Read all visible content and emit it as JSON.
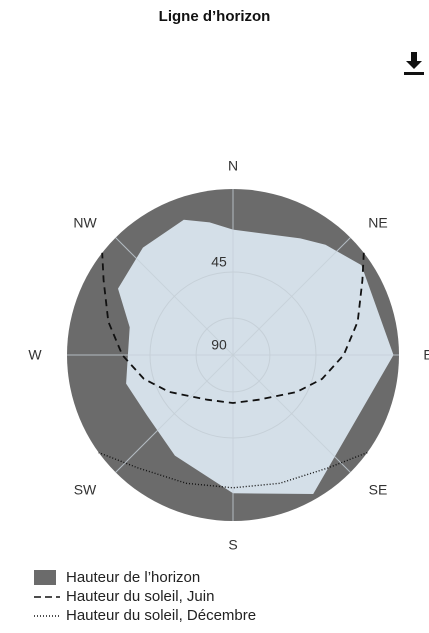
{
  "chart_title": "Ligne d’horizon",
  "icons": {
    "download": "download-icon"
  },
  "chart_data": {
    "type": "polar",
    "title": "Ligne d’horizon",
    "compass": [
      "N",
      "NE",
      "E",
      "SE",
      "S",
      "SW",
      "W",
      "NW"
    ],
    "radial_tick_labels": [
      "45",
      "90"
    ],
    "radial_axis": {
      "center_value": 90,
      "edge_value": 0,
      "unit": "degrees elevation"
    },
    "colors": {
      "horizon_fill": "#6b6b6b",
      "sky_fill": "#d4dfe8",
      "sun_path": "#111111",
      "grid": "#c6d0d8"
    },
    "series": [
      {
        "name": "Hauteur de l’horizon",
        "style": "filled",
        "azimuth": [
          0,
          30,
          40,
          55,
          90,
          150,
          180,
          210,
          235,
          255,
          270,
          285,
          300,
          320,
          340,
          350,
          360
        ],
        "elevation": [
          22,
          17,
          12,
          5,
          3,
          3,
          15,
          27,
          33,
          30,
          33,
          32,
          18,
          14,
          12,
          17,
          22
        ]
      },
      {
        "name": "Hauteur du soleil, Juin",
        "style": "dashed",
        "azimuth": [
          52,
          60,
          75,
          90,
          105,
          120,
          150,
          180,
          210,
          240,
          255,
          270,
          285,
          300,
          308
        ],
        "elevation": [
          0,
          9,
          20,
          30,
          40,
          50,
          62,
          64,
          62,
          50,
          40,
          30,
          20,
          9,
          0
        ]
      },
      {
        "name": "Hauteur du soleil, Décembre",
        "style": "dotted",
        "azimuth": [
          126,
          140,
          160,
          180,
          200,
          220,
          234
        ],
        "elevation": [
          0,
          10,
          16,
          18,
          16,
          10,
          0
        ]
      }
    ],
    "legend": [
      "Hauteur de l’horizon",
      "Hauteur du soleil, Juin",
      "Hauteur du soleil, Décembre"
    ]
  }
}
